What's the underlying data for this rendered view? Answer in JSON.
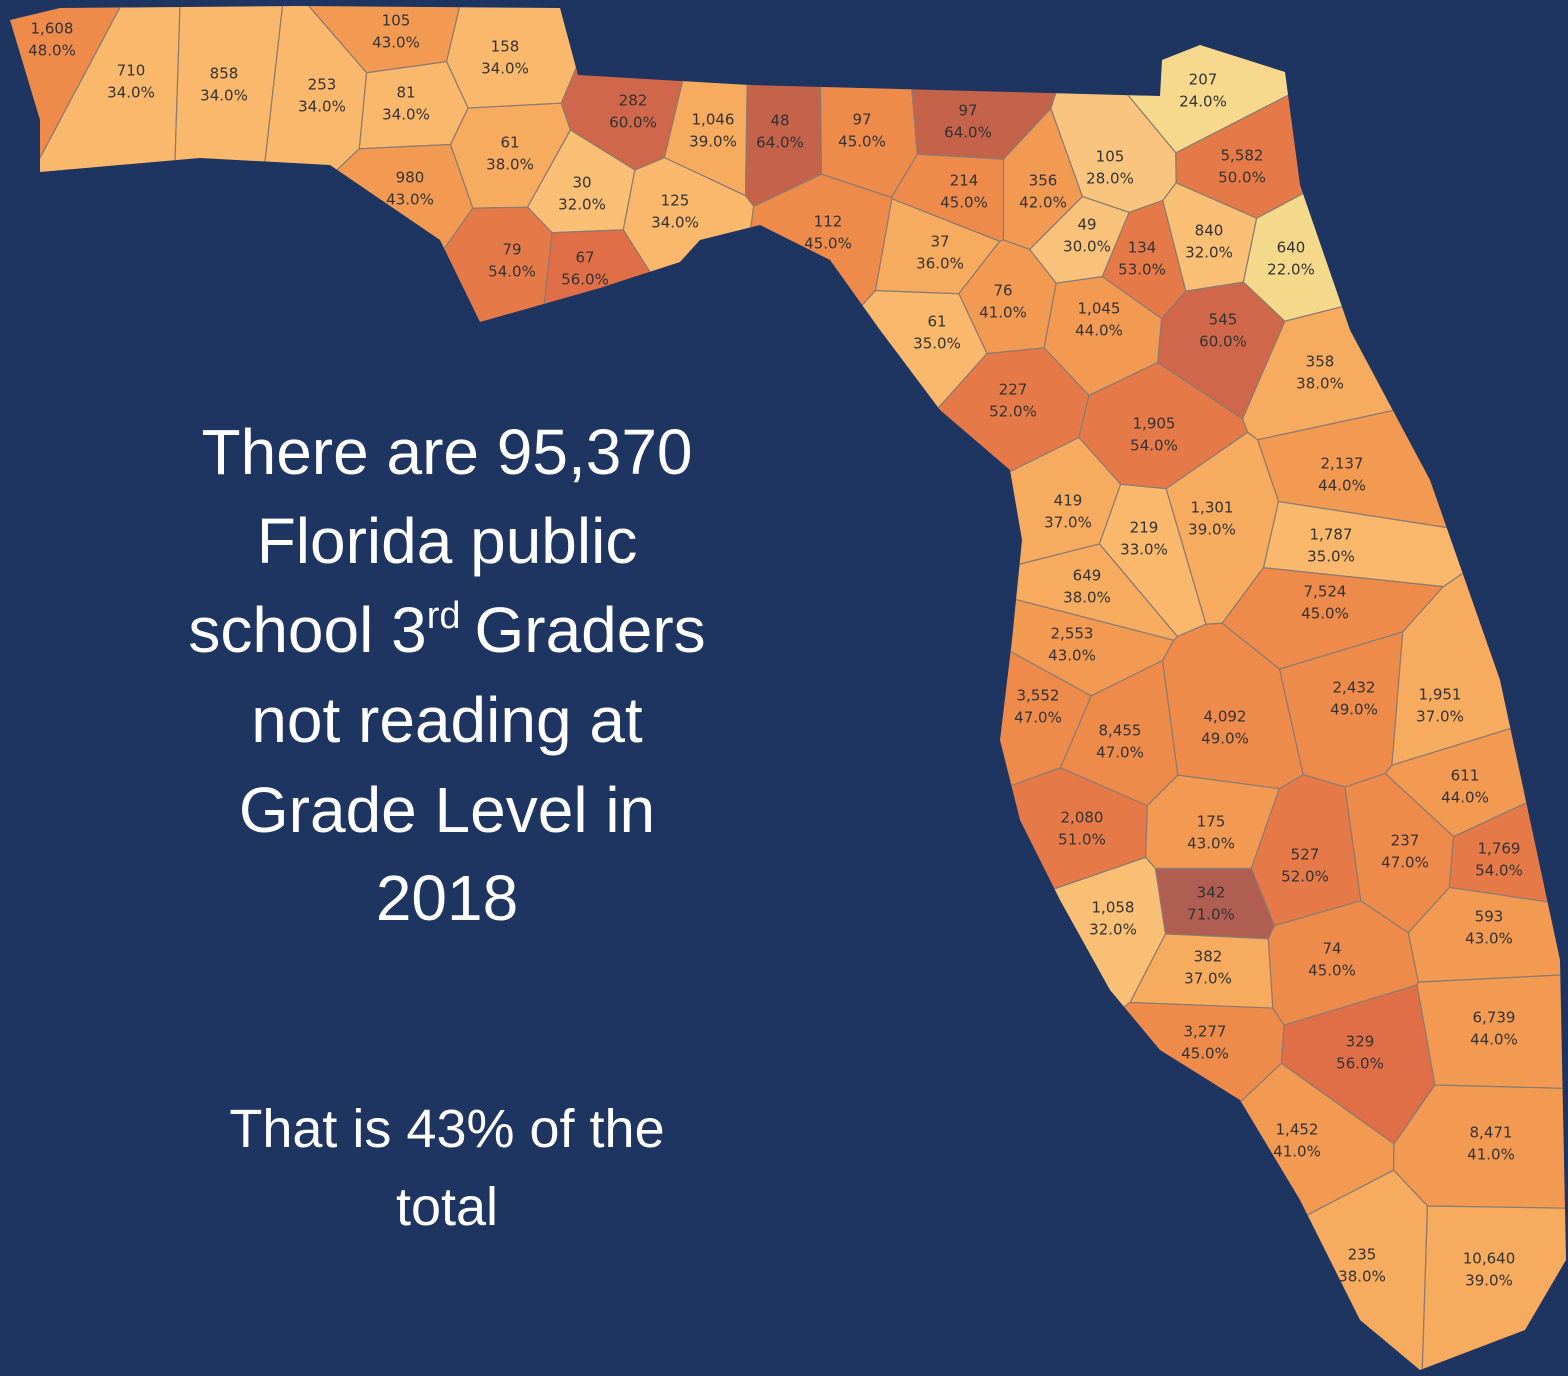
{
  "headline": [
    "There are 95,370",
    "Florida public",
    "school 3",
    "rd",
    "Graders",
    "not reading at",
    "Grade Level in",
    "2018"
  ],
  "footnote": [
    "That is 43% of the",
    "total"
  ],
  "counties": [
    {
      "count": "1,608",
      "percent": "48.0%",
      "color": "#ee8b4b"
    },
    {
      "count": "710",
      "percent": "34.0%",
      "color": "#f9b86c"
    },
    {
      "count": "858",
      "percent": "34.0%",
      "color": "#f9b86c"
    },
    {
      "count": "253",
      "percent": "34.0%",
      "color": "#f9b86c"
    },
    {
      "count": "105",
      "percent": "43.0%",
      "color": "#f39a52"
    },
    {
      "count": "158",
      "percent": "34.0%",
      "color": "#f9b86c"
    },
    {
      "count": "81",
      "percent": "34.0%",
      "color": "#f9b86c"
    },
    {
      "count": "980",
      "percent": "43.0%",
      "color": "#f39a52"
    },
    {
      "count": "61",
      "percent": "38.0%",
      "color": "#f6ab5e"
    },
    {
      "count": "282",
      "percent": "60.0%",
      "color": "#d0674a"
    },
    {
      "count": "1,046",
      "percent": "39.0%",
      "color": "#f6ab5e"
    },
    {
      "count": "48",
      "percent": "64.0%",
      "color": "#c5624a"
    },
    {
      "count": "97",
      "percent": "45.0%",
      "color": "#ee8b4b"
    },
    {
      "count": "97",
      "percent": "64.0%",
      "color": "#c5624a"
    },
    {
      "count": "30",
      "percent": "32.0%",
      "color": "#f9bf74"
    },
    {
      "count": "125",
      "percent": "34.0%",
      "color": "#f9b86c"
    },
    {
      "count": "79",
      "percent": "54.0%",
      "color": "#e57a48"
    },
    {
      "count": "67",
      "percent": "56.0%",
      "color": "#e06f48"
    },
    {
      "count": "112",
      "percent": "45.0%",
      "color": "#ee8b4b"
    },
    {
      "count": "214",
      "percent": "45.0%",
      "color": "#ee8b4b"
    },
    {
      "count": "356",
      "percent": "42.0%",
      "color": "#f39a52"
    },
    {
      "count": "105",
      "percent": "28.0%",
      "color": "#f9c57e"
    },
    {
      "count": "207",
      "percent": "24.0%",
      "color": "#f6d98c"
    },
    {
      "count": "5,582",
      "percent": "50.0%",
      "color": "#e57a48"
    },
    {
      "count": "37",
      "percent": "36.0%",
      "color": "#f6ab5e"
    },
    {
      "count": "49",
      "percent": "30.0%",
      "color": "#f9c27a"
    },
    {
      "count": "134",
      "percent": "53.0%",
      "color": "#e57a48"
    },
    {
      "count": "840",
      "percent": "32.0%",
      "color": "#f9bf74"
    },
    {
      "count": "640",
      "percent": "22.0%",
      "color": "#f5d98a"
    },
    {
      "count": "76",
      "percent": "41.0%",
      "color": "#f39a52"
    },
    {
      "count": "61",
      "percent": "35.0%",
      "color": "#f9b86c"
    },
    {
      "count": "1,045",
      "percent": "44.0%",
      "color": "#f39a52"
    },
    {
      "count": "545",
      "percent": "60.0%",
      "color": "#d0674a"
    },
    {
      "count": "358",
      "percent": "38.0%",
      "color": "#f6ab5e"
    },
    {
      "count": "227",
      "percent": "52.0%",
      "color": "#e57a48"
    },
    {
      "count": "1,905",
      "percent": "54.0%",
      "color": "#e57a48"
    },
    {
      "count": "2,137",
      "percent": "44.0%",
      "color": "#f39a52"
    },
    {
      "count": "419",
      "percent": "37.0%",
      "color": "#f6ab5e"
    },
    {
      "count": "219",
      "percent": "33.0%",
      "color": "#f9b86c"
    },
    {
      "count": "1,301",
      "percent": "39.0%",
      "color": "#f6ab5e"
    },
    {
      "count": "1,787",
      "percent": "35.0%",
      "color": "#f9b86c"
    },
    {
      "count": "649",
      "percent": "38.0%",
      "color": "#f6ab5e"
    },
    {
      "count": "7,524",
      "percent": "45.0%",
      "color": "#ee8b4b"
    },
    {
      "count": "2,553",
      "percent": "43.0%",
      "color": "#f39a52"
    },
    {
      "count": "3,552",
      "percent": "47.0%",
      "color": "#ee8b4b"
    },
    {
      "count": "8,455",
      "percent": "47.0%",
      "color": "#ee8b4b"
    },
    {
      "count": "4,092",
      "percent": "49.0%",
      "color": "#ee8b4b"
    },
    {
      "count": "2,432",
      "percent": "49.0%",
      "color": "#ee8b4b"
    },
    {
      "count": "1,951",
      "percent": "37.0%",
      "color": "#f6ab5e"
    },
    {
      "count": "611",
      "percent": "44.0%",
      "color": "#f39a52"
    },
    {
      "count": "2,080",
      "percent": "51.0%",
      "color": "#e57a48"
    },
    {
      "count": "175",
      "percent": "43.0%",
      "color": "#f39a52"
    },
    {
      "count": "527",
      "percent": "52.0%",
      "color": "#e57a48"
    },
    {
      "count": "237",
      "percent": "47.0%",
      "color": "#ee8b4b"
    },
    {
      "count": "1,769",
      "percent": "54.0%",
      "color": "#e57a48"
    },
    {
      "count": "342",
      "percent": "71.0%",
      "color": "#b05e52"
    },
    {
      "count": "1,058",
      "percent": "32.0%",
      "color": "#f9bf74"
    },
    {
      "count": "593",
      "percent": "43.0%",
      "color": "#f39a52"
    },
    {
      "count": "382",
      "percent": "37.0%",
      "color": "#f6ab5e"
    },
    {
      "count": "74",
      "percent": "45.0%",
      "color": "#ee8b4b"
    },
    {
      "count": "6,739",
      "percent": "44.0%",
      "color": "#f39a52"
    },
    {
      "count": "3,277",
      "percent": "45.0%",
      "color": "#ee8b4b"
    },
    {
      "count": "329",
      "percent": "56.0%",
      "color": "#e06f48"
    },
    {
      "count": "1,452",
      "percent": "41.0%",
      "color": "#f39a52"
    },
    {
      "count": "8,471",
      "percent": "41.0%",
      "color": "#f39a52"
    },
    {
      "count": "235",
      "percent": "38.0%",
      "color": "#f6ab5e"
    },
    {
      "count": "10,640",
      "percent": "39.0%",
      "color": "#f6ab5e"
    }
  ]
}
